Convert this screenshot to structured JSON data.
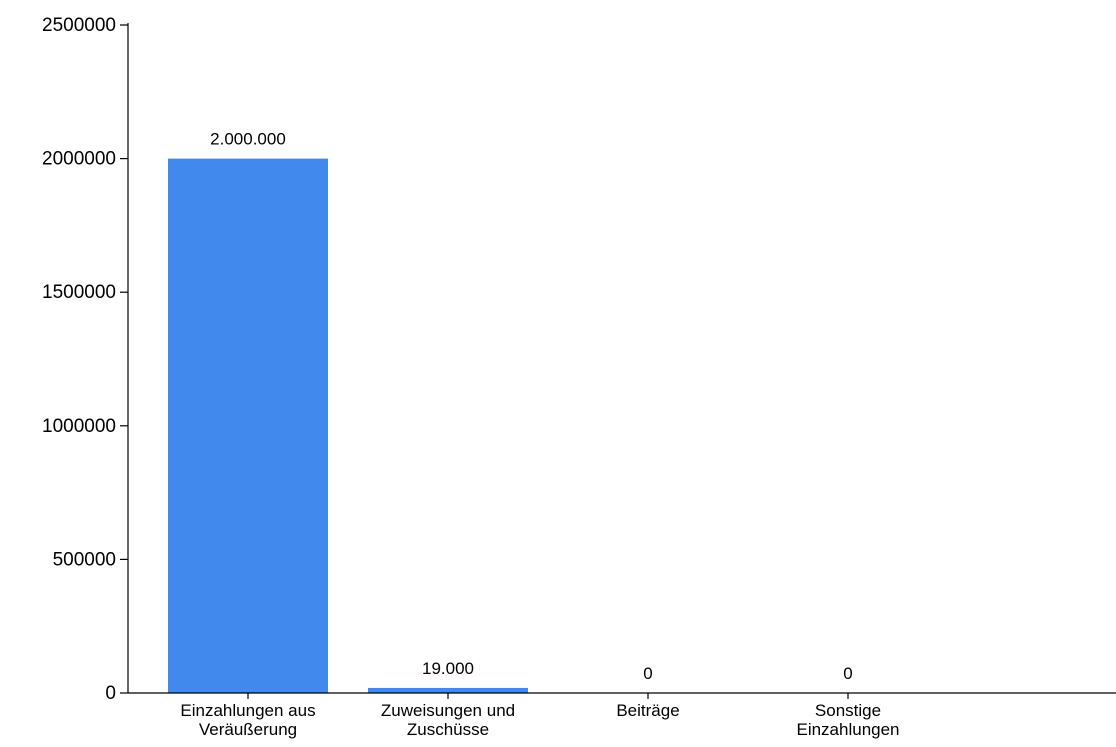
{
  "chart_data": {
    "type": "bar",
    "categories": [
      [
        "Einzahlungen aus",
        "Veräußerung"
      ],
      [
        "Zuweisungen und",
        "Zuschüsse"
      ],
      [
        "Beiträge"
      ],
      [
        "Sonstige",
        "Einzahlungen"
      ]
    ],
    "values": [
      2000000,
      19000,
      0,
      0
    ],
    "data_labels": [
      "2.000.000",
      "19.000",
      "0",
      "0"
    ],
    "ylim": [
      0,
      2500000
    ],
    "yticks": [
      0,
      500000,
      1000000,
      1500000,
      2000000,
      2500000
    ],
    "ytick_labels": [
      "0",
      "500000",
      "1000000",
      "1500000",
      "2000000",
      "2500000"
    ],
    "grid": false,
    "legend": "none",
    "bar_color": "#4189ed",
    "axis_color": "#000000"
  }
}
